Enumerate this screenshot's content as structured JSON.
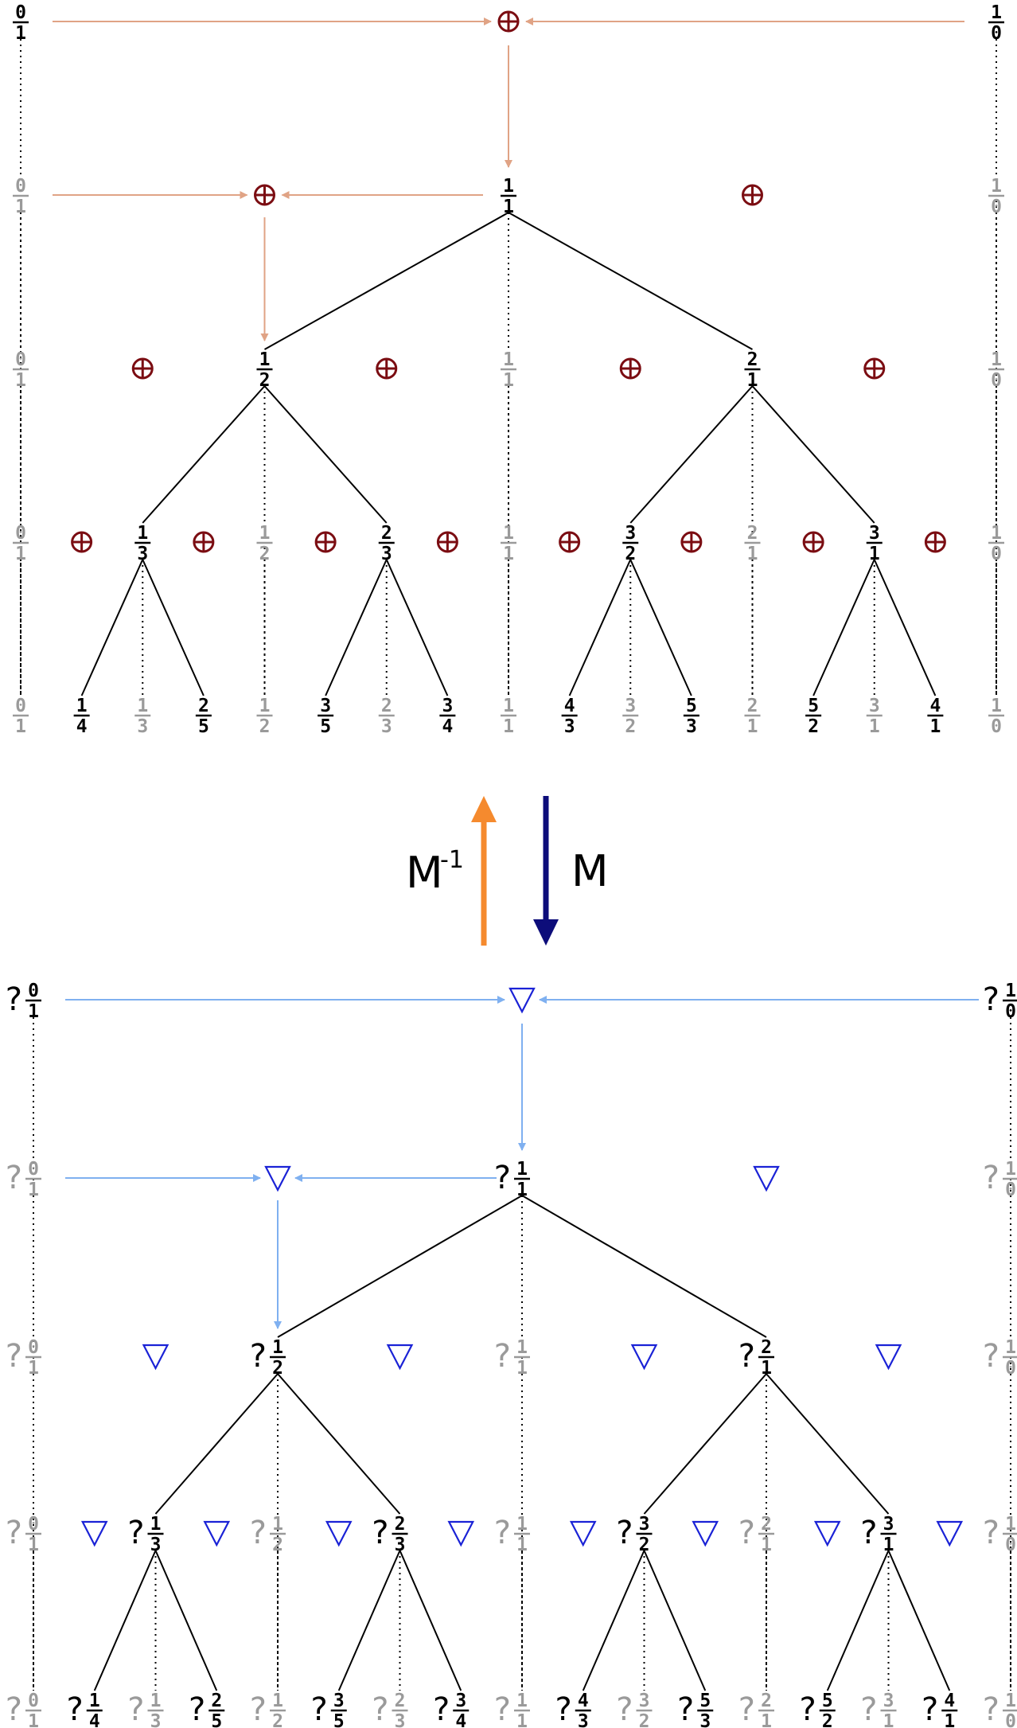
{
  "colors": {
    "black": "#000000",
    "gray": "#9a9a9a",
    "operator_top": "#7b0d12",
    "operator_bottom": "#1a22d6",
    "flow_top": "#e0a385",
    "flow_bottom": "#7fb0f0",
    "arrow_inverse": "#f58a2e",
    "arrow_forward": "#0d0d7a"
  },
  "icons": {
    "top_operator": "circled-plus-icon",
    "bottom_operator": "down-triangle-icon"
  },
  "unknown_prefix": "?",
  "transform": {
    "inverse_label": "M",
    "inverse_exponent": "-1",
    "forward_label": "M"
  },
  "tree": {
    "levels": [
      {
        "nodes": [
          {
            "num": "0",
            "den": "1",
            "kind": "boundary"
          },
          {
            "num": "1",
            "den": "0",
            "kind": "boundary"
          }
        ],
        "operators": 1
      },
      {
        "nodes": [
          {
            "num": "0",
            "den": "1",
            "kind": "ghost"
          },
          {
            "num": "1",
            "den": "1",
            "kind": "new"
          },
          {
            "num": "1",
            "den": "0",
            "kind": "ghost"
          }
        ],
        "operators": 2
      },
      {
        "nodes": [
          {
            "num": "0",
            "den": "1",
            "kind": "ghost"
          },
          {
            "num": "1",
            "den": "2",
            "kind": "new"
          },
          {
            "num": "1",
            "den": "1",
            "kind": "ghost"
          },
          {
            "num": "2",
            "den": "1",
            "kind": "new"
          },
          {
            "num": "1",
            "den": "0",
            "kind": "ghost"
          }
        ],
        "operators": 4
      },
      {
        "nodes": [
          {
            "num": "0",
            "den": "1",
            "kind": "ghost"
          },
          {
            "num": "1",
            "den": "3",
            "kind": "new"
          },
          {
            "num": "1",
            "den": "2",
            "kind": "ghost"
          },
          {
            "num": "2",
            "den": "3",
            "kind": "new"
          },
          {
            "num": "1",
            "den": "1",
            "kind": "ghost"
          },
          {
            "num": "3",
            "den": "2",
            "kind": "new"
          },
          {
            "num": "2",
            "den": "1",
            "kind": "ghost"
          },
          {
            "num": "3",
            "den": "1",
            "kind": "new"
          },
          {
            "num": "1",
            "den": "0",
            "kind": "ghost"
          }
        ],
        "operators": 8
      },
      {
        "nodes": [
          {
            "num": "0",
            "den": "1",
            "kind": "ghost"
          },
          {
            "num": "1",
            "den": "4",
            "kind": "new"
          },
          {
            "num": "1",
            "den": "3",
            "kind": "ghost"
          },
          {
            "num": "2",
            "den": "5",
            "kind": "new"
          },
          {
            "num": "1",
            "den": "2",
            "kind": "ghost"
          },
          {
            "num": "3",
            "den": "5",
            "kind": "new"
          },
          {
            "num": "2",
            "den": "3",
            "kind": "ghost"
          },
          {
            "num": "3",
            "den": "4",
            "kind": "new"
          },
          {
            "num": "1",
            "den": "1",
            "kind": "ghost"
          },
          {
            "num": "4",
            "den": "3",
            "kind": "new"
          },
          {
            "num": "3",
            "den": "2",
            "kind": "ghost"
          },
          {
            "num": "5",
            "den": "3",
            "kind": "new"
          },
          {
            "num": "2",
            "den": "1",
            "kind": "ghost"
          },
          {
            "num": "5",
            "den": "2",
            "kind": "new"
          },
          {
            "num": "3",
            "den": "1",
            "kind": "ghost"
          },
          {
            "num": "4",
            "den": "1",
            "kind": "new"
          },
          {
            "num": "1",
            "den": "0",
            "kind": "ghost"
          }
        ],
        "operators": 0
      }
    ]
  }
}
